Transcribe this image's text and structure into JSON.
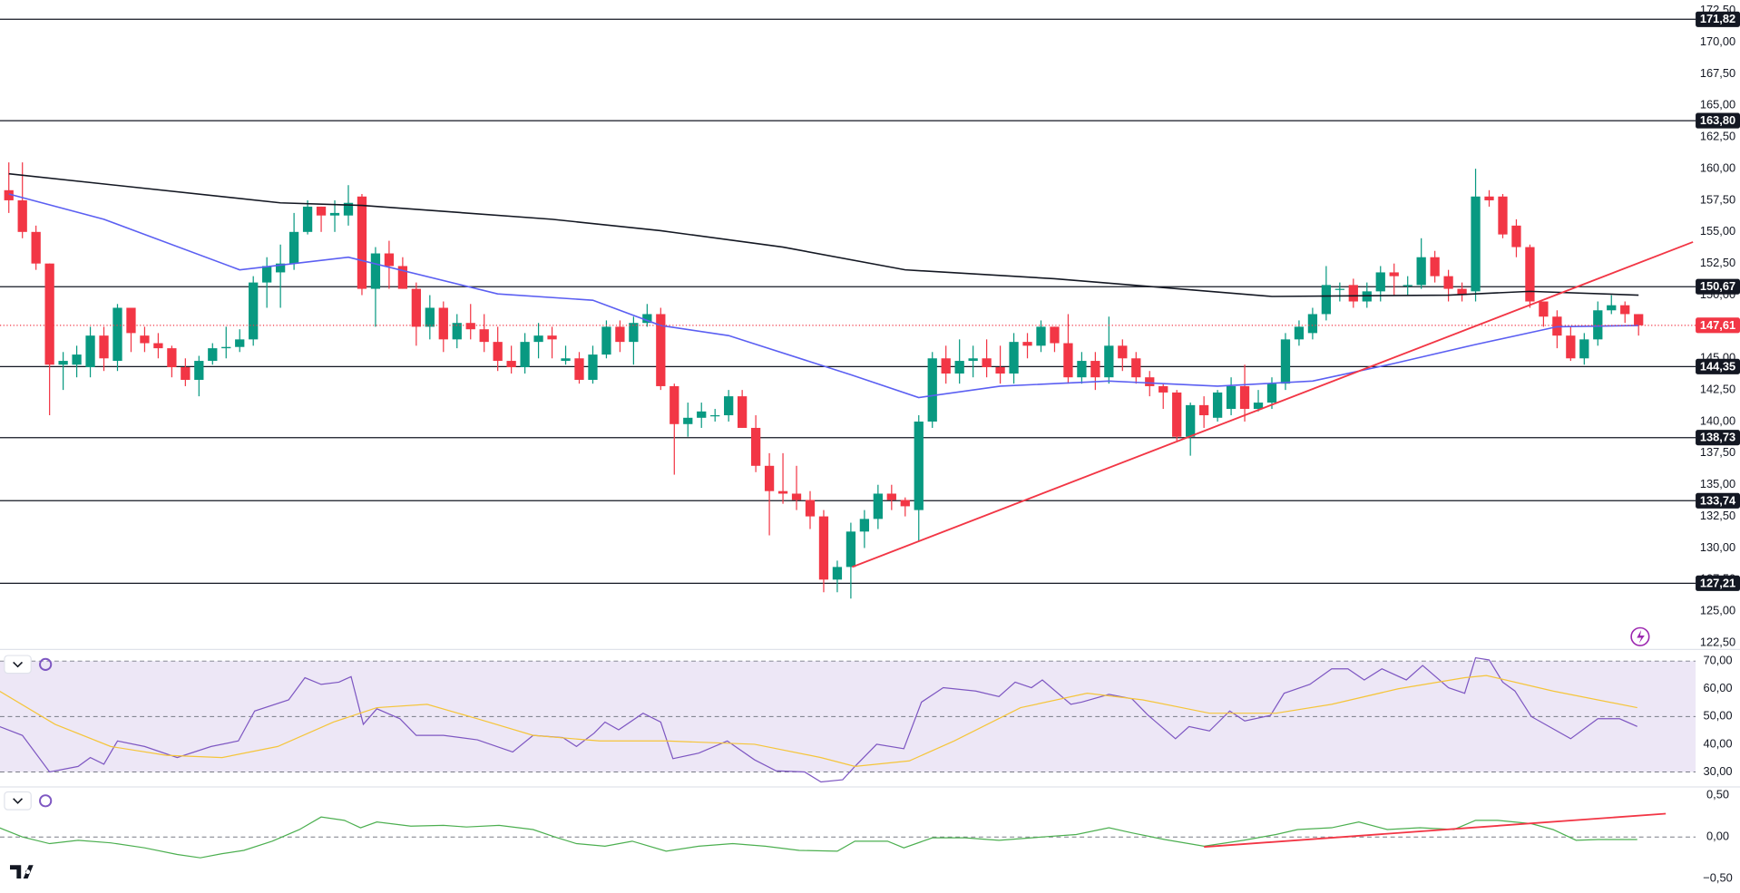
{
  "chart_data": [
    {
      "type": "candlestick",
      "xlim": [
        -0.65,
        124.2
      ],
      "ylim": [
        122.02,
        173.07
      ],
      "yticks": [
        {
          "value": 172.5,
          "label": "172,50"
        },
        {
          "value": 170,
          "label": "170,00"
        },
        {
          "value": 167.5,
          "label": "167,50"
        },
        {
          "value": 165,
          "label": "165,00"
        },
        {
          "value": 162.5,
          "label": "162,50"
        },
        {
          "value": 160,
          "label": "160,00"
        },
        {
          "value": 157.5,
          "label": "157,50"
        },
        {
          "value": 155,
          "label": "155,00"
        },
        {
          "value": 152.5,
          "label": "152,50"
        },
        {
          "value": 150,
          "label": "150,00"
        },
        {
          "value": 147.5,
          "label": "147,50"
        },
        {
          "value": 145,
          "label": "145,00"
        },
        {
          "value": 142.5,
          "label": "142,50"
        },
        {
          "value": 140,
          "label": "140,00"
        },
        {
          "value": 137.5,
          "label": "137,50"
        },
        {
          "value": 135,
          "label": "135,00"
        },
        {
          "value": 132.5,
          "label": "132,50"
        },
        {
          "value": 130,
          "label": "130,00"
        },
        {
          "value": 127.5,
          "label": "127,50"
        },
        {
          "value": 125,
          "label": "125,00"
        },
        {
          "value": 122.5,
          "label": "122,50"
        }
      ],
      "up_color": "#089981",
      "down_color": "#f23645",
      "open": [
        158.3,
        157.5,
        155,
        152.5,
        144.5,
        144.5,
        144.3,
        146.8,
        144.8,
        149,
        146.8,
        146.2,
        145.8,
        144.3,
        143.3,
        144.8,
        145.8,
        145.9,
        146.5,
        151,
        151.8,
        152.5,
        155,
        157,
        156.3,
        156.3,
        157.8,
        150.5,
        153.3,
        152.3,
        150.5,
        147.5,
        149,
        146.5,
        147.8,
        147.3,
        146.3,
        144.8,
        144.3,
        146.3,
        146.8,
        144.8,
        145,
        143.3,
        145.3,
        147.5,
        146.3,
        147.8,
        148.5,
        142.8,
        139.8,
        140.3,
        140.5,
        140.5,
        142,
        139.5,
        136.5,
        134.5,
        134.3,
        133.8,
        132.5,
        127.5,
        128.5,
        131.3,
        132.3,
        134.3,
        133.8,
        133,
        140,
        145,
        143.8,
        144.8,
        145,
        144.3,
        143.8,
        146.3,
        146,
        147.5,
        146.2,
        143.5,
        144.8,
        143.5,
        146,
        145,
        143.5,
        142.8,
        142.3,
        138.8,
        141.3,
        140.3,
        141,
        142.8,
        141,
        141.5,
        143,
        146.5,
        147,
        148.5,
        150.5,
        150.8,
        149.5,
        150.3,
        151.8,
        150.8,
        150.8,
        153,
        151.5,
        150.5,
        150.3,
        157.8,
        157.8,
        155.5,
        153.8,
        149.5,
        148.3,
        146.8,
        145,
        146.5,
        148.8,
        149.2,
        148.5
      ],
      "high": [
        160.5,
        160.5,
        155.5,
        152.5,
        145.5,
        146,
        147.5,
        147.5,
        149.3,
        149,
        147.5,
        147,
        146,
        145,
        145.2,
        146.2,
        147.5,
        147.3,
        151.5,
        153,
        154,
        156.5,
        157.5,
        157,
        157.5,
        158.7,
        158,
        153.8,
        154.3,
        153,
        151,
        150,
        149.5,
        148.5,
        149.3,
        148.5,
        147.5,
        146,
        147,
        147.8,
        147.5,
        146,
        145.5,
        146,
        148,
        148,
        148.3,
        149.3,
        149,
        143,
        141.5,
        141.5,
        141,
        142.5,
        142.5,
        140.5,
        137.5,
        137.5,
        136.5,
        134.5,
        133,
        129,
        132,
        133,
        135,
        135,
        134,
        140.5,
        145.5,
        146,
        146.5,
        146,
        146.5,
        146,
        147,
        147,
        148,
        147.5,
        148.5,
        145.5,
        145.5,
        148.3,
        146.5,
        145.5,
        144,
        143,
        142.5,
        141.5,
        142,
        142.5,
        143.5,
        144.5,
        142.5,
        143.5,
        147,
        148,
        149,
        152.3,
        151,
        151.3,
        151,
        152.3,
        152.5,
        151.5,
        154.5,
        153.5,
        152,
        151,
        160,
        158.3,
        158,
        156,
        154,
        149.5,
        148.8,
        147.5,
        147,
        149.5,
        150,
        149.5,
        148.5
      ],
      "low": [
        156.5,
        154.5,
        152,
        140.5,
        142.5,
        143.5,
        143.5,
        144,
        144,
        145.5,
        145.5,
        145,
        143.5,
        142.8,
        142,
        144.5,
        145,
        145.5,
        146,
        149,
        149,
        152,
        154.8,
        155,
        155,
        155.5,
        150,
        147.5,
        150.5,
        150.5,
        146,
        146.5,
        145.5,
        145.8,
        146.5,
        145.5,
        144,
        143.8,
        143.8,
        145,
        145,
        144.5,
        143,
        143,
        145,
        145.5,
        144.5,
        147.5,
        142.5,
        135.8,
        138.8,
        139.5,
        140,
        140,
        139.5,
        136,
        131,
        133.5,
        133,
        131.5,
        126.5,
        126.5,
        126,
        130,
        131.5,
        133,
        132.5,
        130.5,
        139.5,
        143,
        143,
        143.5,
        143.5,
        143,
        143,
        145,
        145.5,
        145.5,
        143,
        143,
        142.5,
        143,
        144,
        143,
        142,
        141,
        138.5,
        137.3,
        139.5,
        140,
        140.5,
        140,
        140.8,
        141,
        142.5,
        146,
        146.5,
        148,
        149.5,
        149,
        149,
        149.5,
        150,
        150,
        150.5,
        151,
        149.5,
        149.5,
        149.5,
        157,
        154.5,
        153,
        149,
        147.5,
        145.8,
        144.8,
        144.5,
        146,
        148.5,
        147.8,
        146.8
      ],
      "close": [
        157.5,
        155,
        152.5,
        144.5,
        144.8,
        145.3,
        146.8,
        145,
        149,
        147,
        146.2,
        145.8,
        144.3,
        143.3,
        144.8,
        145.8,
        145.9,
        146.5,
        151,
        152.3,
        152.5,
        155,
        157,
        156.3,
        156.5,
        157.3,
        150.5,
        153.3,
        152.3,
        150.5,
        147.5,
        149,
        146.5,
        147.8,
        147.3,
        146.3,
        144.8,
        144.3,
        146.3,
        146.8,
        146.5,
        145,
        143.3,
        145.3,
        147.5,
        146.3,
        147.8,
        148.5,
        142.8,
        139.8,
        140.3,
        140.8,
        140.5,
        142,
        139.5,
        136.5,
        134.5,
        134.3,
        133.8,
        132.5,
        127.5,
        128.5,
        131.3,
        132.3,
        134.3,
        133.8,
        133.3,
        140,
        145,
        143.8,
        144.8,
        145,
        144.3,
        143.8,
        146.3,
        146,
        147.5,
        146.2,
        143.5,
        144.8,
        143.5,
        146,
        145,
        143.5,
        142.8,
        142.3,
        138.8,
        141.3,
        140.5,
        142.3,
        142.8,
        141,
        141.5,
        143,
        146.5,
        147.5,
        148.5,
        150.8,
        150.5,
        149.5,
        150.3,
        151.8,
        151.5,
        150.8,
        153,
        151.5,
        150.5,
        150,
        157.8,
        157.5,
        154.8,
        153.8,
        149.5,
        148.3,
        146.8,
        145,
        146.5,
        148.8,
        149.2,
        148.5,
        147.61
      ],
      "series": [
        {
          "color": "#131722",
          "x": [
            0,
            20,
            26,
            40,
            48,
            57,
            66,
            77,
            85,
            93,
            106,
            112,
            120
          ],
          "values": [
            159.6,
            157.3,
            157.1,
            156,
            155.1,
            153.8,
            152,
            151.3,
            150.6,
            149.9,
            150,
            150.3,
            150
          ]
        },
        {
          "color": "#5b5ff2",
          "x": [
            0,
            7,
            17,
            25,
            36,
            43,
            48,
            53,
            62,
            67,
            73,
            81,
            89,
            96,
            102,
            108,
            114,
            120
          ],
          "values": [
            158,
            156,
            152,
            153,
            150.1,
            149.6,
            147.6,
            146.8,
            143.7,
            141.9,
            142.8,
            143.2,
            142.8,
            143.2,
            144.6,
            146.1,
            147.5,
            147.6
          ]
        }
      ],
      "trendlines": [
        {
          "color": "#f23645",
          "x": [
            62.1,
            124
          ],
          "values": [
            128.5,
            154.2
          ]
        }
      ],
      "levels": [
        {
          "value": 171.82,
          "label": "171,82"
        },
        {
          "value": 163.8,
          "label": "163,80"
        },
        {
          "value": 150.67,
          "label": "150,67"
        },
        {
          "value": 144.35,
          "label": "144,35"
        },
        {
          "value": 138.73,
          "label": "138,73"
        },
        {
          "value": 133.74,
          "label": "133,74"
        },
        {
          "value": 127.21,
          "label": "127,21"
        }
      ],
      "level_color": "#131722",
      "last_price": {
        "value": 147.61,
        "label": "147,61",
        "color": "#f23645"
      }
    },
    {
      "type": "line",
      "xlim": [
        -0.65,
        124.2
      ],
      "ylim": [
        25.2,
        74
      ],
      "yticks": [
        {
          "value": 70,
          "label": "70,00"
        },
        {
          "value": 60,
          "label": "60,00"
        },
        {
          "value": 50,
          "label": "50,00"
        },
        {
          "value": 40,
          "label": "40,00"
        },
        {
          "value": 30,
          "label": "30,00"
        }
      ],
      "band": [
        30,
        70
      ],
      "band_color": "#ede7f6",
      "hlines": [
        70,
        50,
        30
      ],
      "series": [
        {
          "color": "#7e57c2",
          "x": [
            -0.7,
            1,
            3,
            5.1,
            6,
            7,
            8,
            10,
            12.4,
            14.9,
            16.9,
            18.1,
            20.6,
            21.8,
            23,
            24.3,
            25.2,
            26.1,
            27.1,
            28.8,
            30,
            32,
            34.5,
            37.1,
            38.6,
            40.8,
            41.8,
            43.1,
            43.9,
            44.9,
            46.7,
            48,
            48.9,
            50.8,
            52.9,
            54.9,
            56.5,
            58.6,
            59.8,
            61.4,
            62.3,
            63.9,
            65.9,
            67.2,
            68.8,
            71.2,
            72.9,
            74.1,
            75.3,
            76.1,
            78.2,
            79,
            81,
            82.7,
            83.9,
            85.9,
            86.9,
            88.4,
            89.9,
            91,
            92.9,
            93.9,
            95.8,
            97.4,
            98.6,
            99.8,
            101.1,
            102.9,
            104.1,
            106,
            107.2,
            108,
            109,
            110,
            110.9,
            112.1,
            115,
            117,
            118.6,
            119.9
          ],
          "values": [
            46.4,
            43.2,
            30,
            32,
            35.2,
            32.8,
            41.2,
            39.2,
            35.2,
            39.2,
            41.2,
            52,
            56,
            64,
            61.6,
            62.4,
            64.4,
            47.2,
            52.8,
            49.2,
            43.2,
            43.2,
            41.6,
            37.2,
            43.2,
            42.4,
            39.2,
            44,
            48,
            45.2,
            51.2,
            48,
            34.8,
            36.8,
            41.2,
            34.4,
            30.4,
            30,
            26.4,
            27.2,
            32,
            40,
            38.4,
            55.2,
            60.4,
            59.2,
            57.2,
            62.4,
            60.4,
            63.2,
            54.4,
            55.2,
            58,
            56.4,
            50.4,
            42,
            46.4,
            44.8,
            52,
            48.4,
            50.4,
            58.4,
            61.6,
            67.2,
            67.2,
            63.2,
            67.2,
            63.2,
            68.4,
            60.4,
            58.4,
            71.2,
            70.4,
            62.4,
            59.2,
            50,
            42,
            49.2,
            49.2,
            46.4
          ]
        },
        {
          "color": "#f5c53a",
          "x": [
            -0.7,
            3.4,
            7.5,
            11.6,
            15.7,
            19.8,
            23.9,
            27.1,
            30.8,
            34.5,
            38.6,
            43.5,
            48.4,
            54.9,
            59.8,
            62.3,
            66.3,
            69.6,
            74.5,
            79.4,
            83.5,
            88.4,
            93.3,
            97.4,
            102.3,
            107.2,
            108.8,
            113.7,
            119.9
          ],
          "values": [
            59.2,
            47.2,
            39.2,
            36,
            35.2,
            39.2,
            48,
            53.2,
            54.4,
            49.2,
            43.2,
            41.2,
            41.2,
            40,
            35.2,
            32,
            34,
            41.2,
            53.2,
            58.4,
            56,
            51.2,
            51.2,
            54.4,
            60,
            64,
            64.8,
            59.2,
            53.2
          ]
        }
      ]
    },
    {
      "type": "line",
      "xlim": [
        -0.65,
        124.2
      ],
      "ylim": [
        -0.63,
        0.58
      ],
      "yticks": [
        {
          "value": 0.5,
          "label": "0,50"
        },
        {
          "value": 0,
          "label": "0,00"
        },
        {
          "value": -0.5,
          "label": "−0,50"
        }
      ],
      "hlines": [
        0
      ],
      "series": [
        {
          "color": "#4caf50",
          "x": [
            -0.7,
            1,
            3,
            5.1,
            7.5,
            10,
            12.4,
            14.1,
            15.7,
            17.3,
            19.4,
            21.4,
            23,
            24.7,
            25.9,
            27.1,
            29.6,
            32,
            33.7,
            36.1,
            38.6,
            40.2,
            41.8,
            43.9,
            45.9,
            48.4,
            50.8,
            53.3,
            55.7,
            58.2,
            61,
            62.3,
            64.7,
            65.9,
            68,
            70.4,
            72.9,
            76.1,
            78.6,
            81,
            82.7,
            85.1,
            88,
            90.9,
            93.3,
            94.9,
            97.4,
            99.4,
            101.5,
            103.9,
            106.4,
            108,
            109.6,
            112.1,
            113.7,
            115.4,
            117,
            119.9
          ],
          "values": [
            0.11,
            0,
            -0.08,
            -0.04,
            -0.07,
            -0.13,
            -0.21,
            -0.25,
            -0.2,
            -0.16,
            -0.05,
            0.09,
            0.24,
            0.2,
            0.11,
            0.18,
            0.13,
            0.14,
            0.12,
            0.14,
            0.09,
            0,
            -0.08,
            -0.11,
            -0.05,
            -0.17,
            -0.11,
            -0.08,
            -0.11,
            -0.16,
            -0.17,
            -0.05,
            -0.05,
            -0.13,
            -0.01,
            -0.01,
            -0.04,
            0,
            0.03,
            0.11,
            0.05,
            -0.03,
            -0.11,
            -0.04,
            0.03,
            0.09,
            0.11,
            0.18,
            0.09,
            0.11,
            0.09,
            0.2,
            0.2,
            0.16,
            0.09,
            -0.04,
            -0.03,
            -0.03
          ]
        }
      ],
      "trendlines": [
        {
          "color": "#f23645",
          "x": [
            88,
            122
          ],
          "values": [
            -0.12,
            0.28
          ]
        }
      ]
    }
  ]
}
